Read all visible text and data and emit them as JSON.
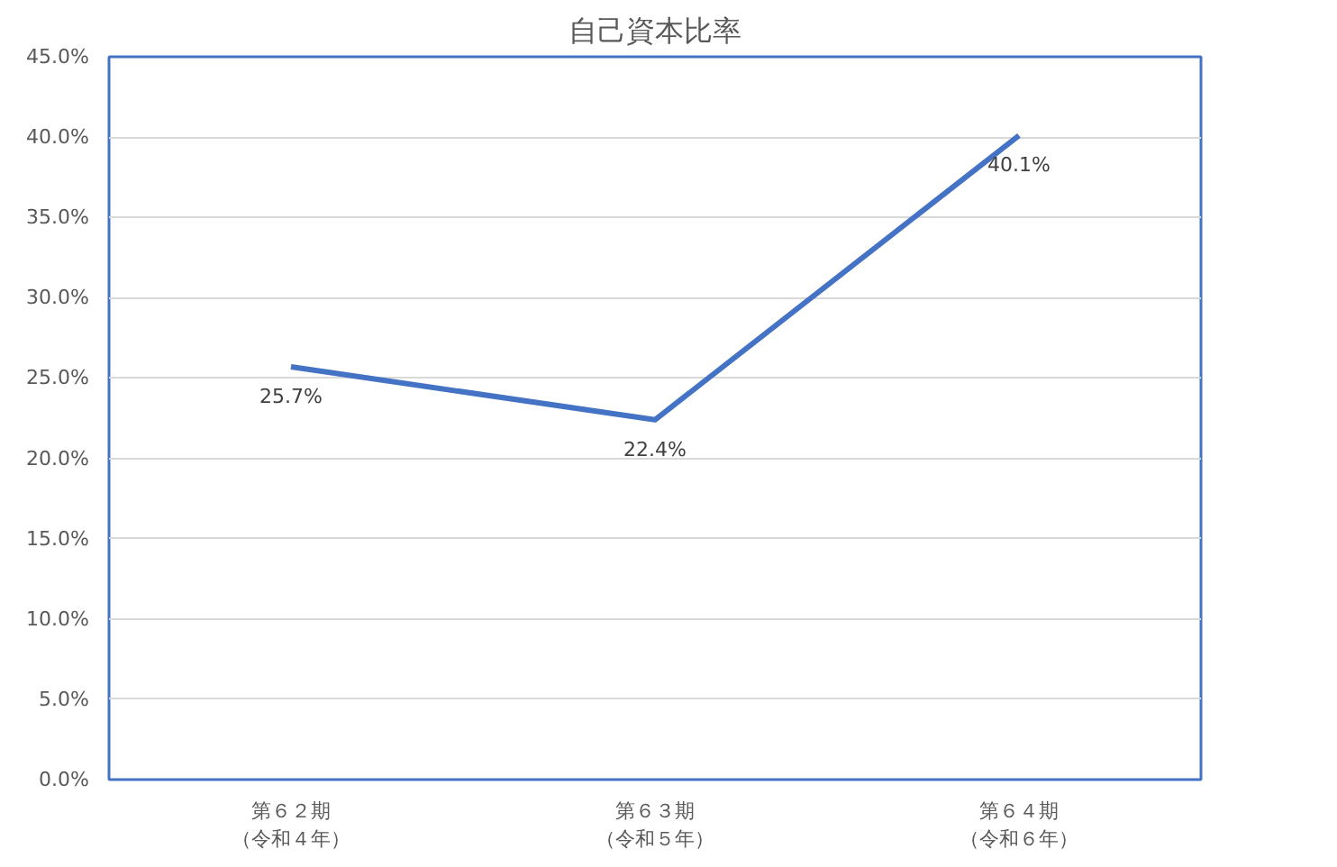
{
  "chart_data": {
    "type": "line",
    "title": "自己資本比率",
    "categories": [
      "第６２期（令和４年）",
      "第６３期（令和５年）",
      "第６４期（令和６年）"
    ],
    "series": [
      {
        "color": "#4472c4",
        "values": [
          25.7,
          22.4,
          40.1
        ]
      }
    ],
    "value_labels": [
      "25.7%",
      "22.4%",
      "40.1%"
    ],
    "ylim": [
      0,
      45
    ],
    "yticks": [
      {
        "value": 0,
        "label": "0.0%"
      },
      {
        "value": 5,
        "label": "5.0%"
      },
      {
        "value": 10,
        "label": "10.0%"
      },
      {
        "value": 15,
        "label": "15.0%"
      },
      {
        "value": 20,
        "label": "20.0%"
      },
      {
        "value": 25,
        "label": "25.0%"
      },
      {
        "value": 30,
        "label": "30.0%"
      },
      {
        "value": 35,
        "label": "35.0%"
      },
      {
        "value": 40,
        "label": "40.0%"
      },
      {
        "value": 45,
        "label": "45.0%"
      }
    ],
    "grid": "y",
    "marker": "none",
    "line_style": "solid"
  }
}
